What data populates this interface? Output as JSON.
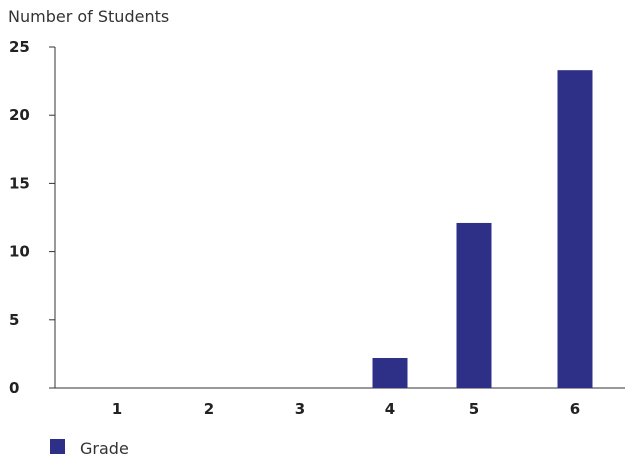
{
  "chart_data": {
    "type": "bar",
    "title": "",
    "ylabel": "Number of Students",
    "xlabel": "",
    "categories": [
      "1",
      "2",
      "3",
      "4",
      "5",
      "6"
    ],
    "series": [
      {
        "name": "Grade",
        "values": [
          0,
          0,
          0,
          2.2,
          12.1,
          23.3
        ],
        "color": "#2e3087"
      }
    ],
    "ylim": [
      0,
      25
    ],
    "yticks": [
      0,
      5,
      10,
      15,
      20,
      25
    ],
    "grid": false,
    "legend": "bottom-left"
  }
}
